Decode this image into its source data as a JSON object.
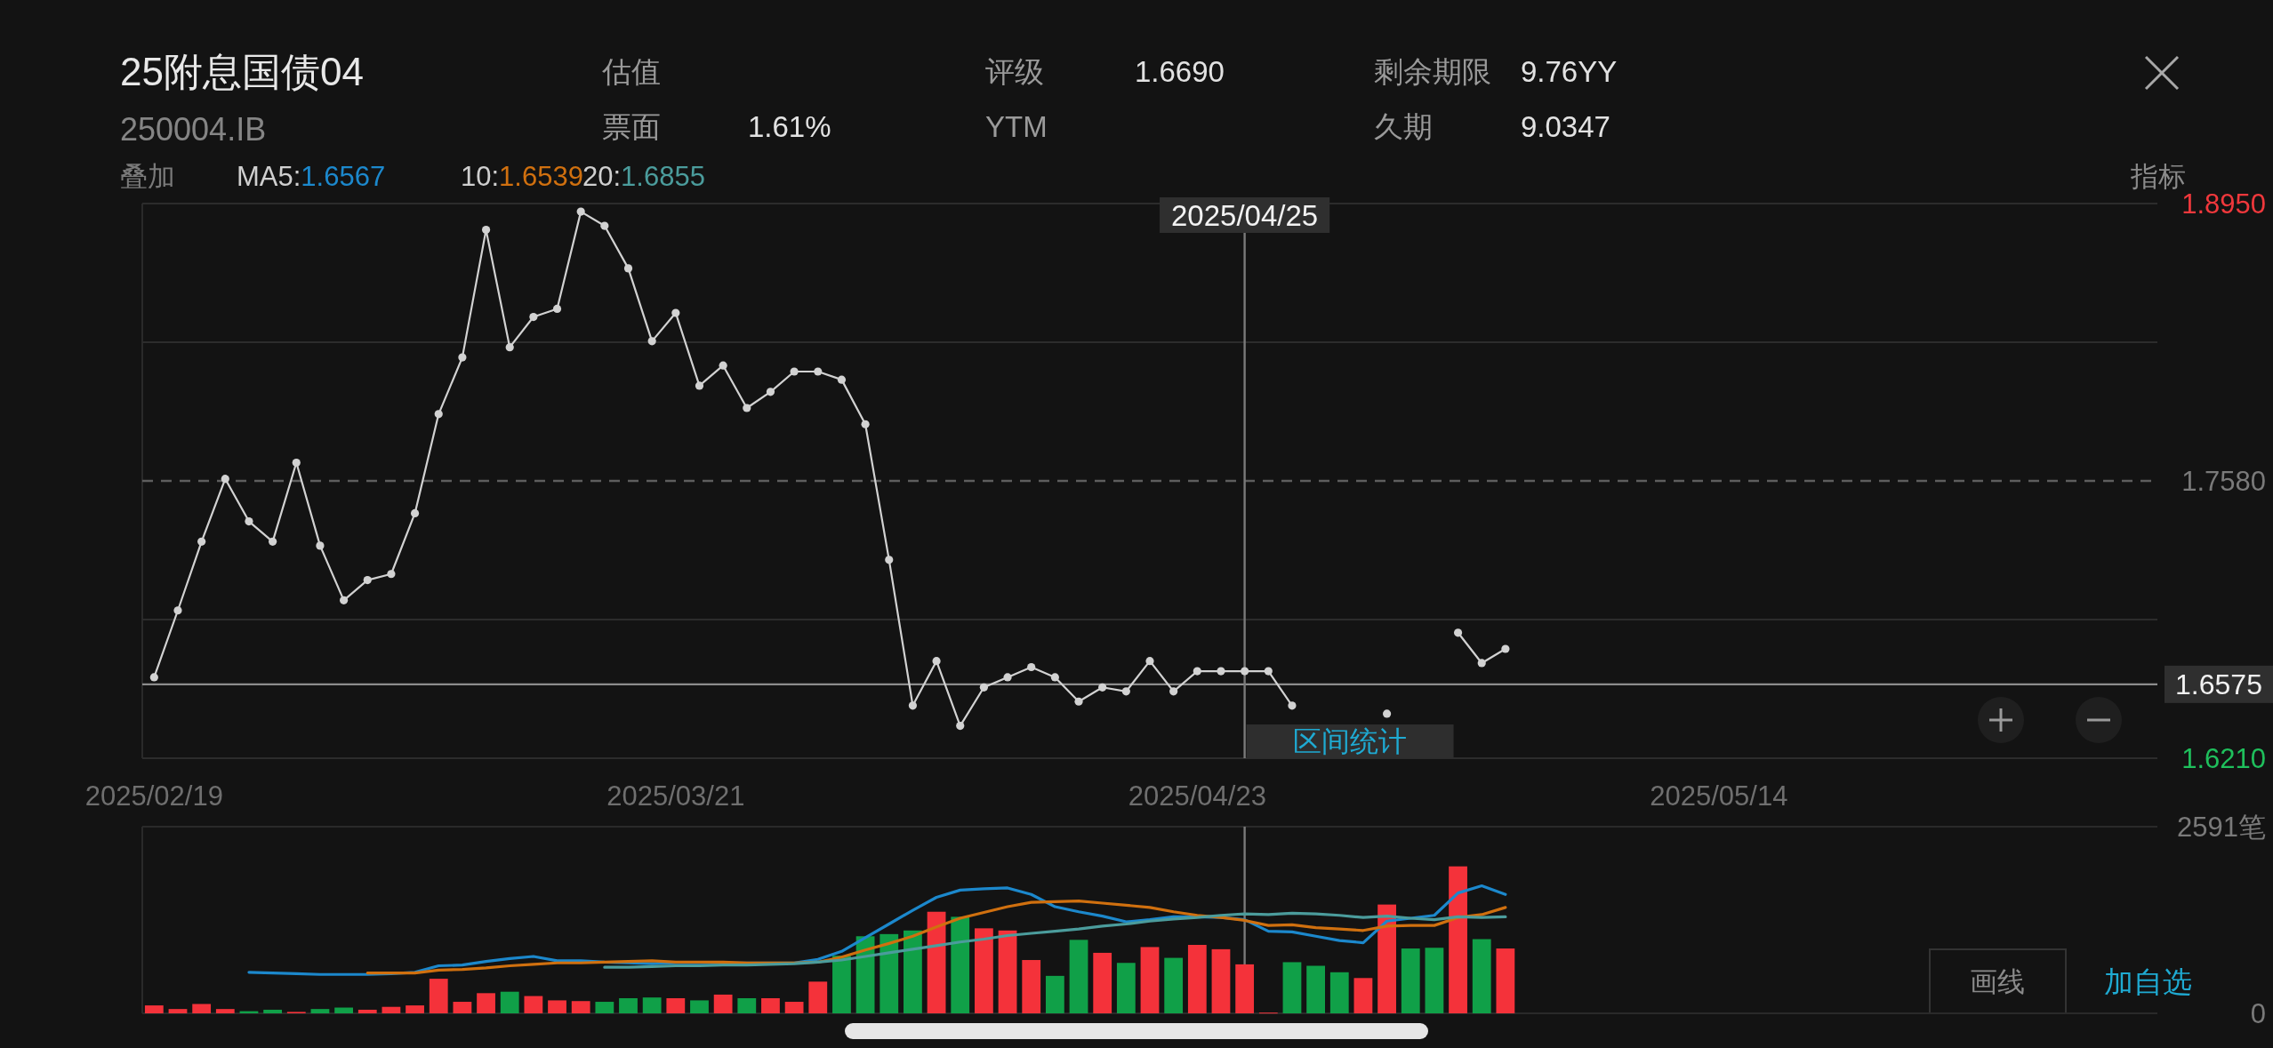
{
  "chart_data": [
    {
      "type": "other",
      "title": "25附息国债04",
      "subtitle": "250004.IB",
      "annotations": [
        "估值",
        "票面",
        "1.61%",
        "评级",
        "1.6690",
        "YTM",
        "剩余期限",
        "9.76YY",
        "久期",
        "9.0347",
        "叠加",
        "MA5:",
        "1.6567",
        "10:",
        "1.6539",
        "20:",
        "1.6855",
        "指标",
        "画线",
        "加自选"
      ]
    },
    {
      "type": "line",
      "categories": [
        "2025/02/19",
        null,
        null,
        null,
        null,
        null,
        null,
        null,
        null,
        null,
        null,
        null,
        null,
        null,
        null,
        null,
        null,
        null,
        null,
        null,
        null,
        null,
        "2025/03/21",
        null,
        null,
        null,
        null,
        null,
        null,
        null,
        null,
        null,
        null,
        null,
        null,
        null,
        null,
        null,
        null,
        null,
        null,
        null,
        null,
        null,
        "2025/04/23",
        null,
        null,
        null,
        null,
        null,
        null,
        null,
        null,
        null,
        null,
        null,
        null,
        null,
        null,
        null,
        null,
        null,
        null,
        null,
        null,
        null,
        "2025/05/14",
        null,
        null,
        null,
        null,
        null,
        null,
        null,
        null,
        null,
        null,
        null,
        null,
        null,
        null,
        null,
        null,
        null,
        null
      ],
      "series": [
        {
          "color": "#d2d2d2",
          "values": [
            1.661,
            1.694,
            1.728,
            1.759,
            1.738,
            1.728,
            1.767,
            1.726,
            1.699,
            1.709,
            1.712,
            1.742,
            1.791,
            1.819,
            1.882,
            1.824,
            1.839,
            1.843,
            1.891,
            1.884,
            1.863,
            1.827,
            1.841,
            1.805,
            1.815,
            1.794,
            1.802,
            1.812,
            1.812,
            1.808,
            1.786,
            1.719,
            1.647,
            1.669,
            1.637,
            1.656,
            1.661,
            1.666,
            1.661,
            1.649,
            1.656,
            1.654,
            1.669,
            1.654,
            1.664,
            1.664,
            1.664,
            1.664,
            1.647,
            null,
            null,
            null,
            1.643,
            null,
            null,
            1.683,
            1.668,
            1.675,
            null,
            null,
            null,
            null,
            null,
            null,
            null,
            null,
            null,
            null,
            null,
            null,
            null,
            null,
            null,
            null,
            null,
            null,
            null,
            null,
            null,
            null,
            null,
            null,
            null,
            null,
            null
          ]
        }
      ],
      "marker": "circle",
      "ylim": [
        1.621,
        1.895
      ],
      "yticks": [
        {
          "value": 1.895,
          "label": "1.8950"
        },
        {
          "value": 1.8265,
          "label": null
        },
        {
          "value": 1.758,
          "label": "1.7580"
        },
        {
          "value": 1.6895,
          "label": null
        },
        {
          "value": 1.621,
          "label": "1.6210"
        }
      ],
      "grid": "y",
      "ref_lines": [
        {
          "axis": "y",
          "value": 1.758,
          "line_style": "dashed",
          "color": "#5e5e5e"
        },
        {
          "axis": "y",
          "value": 1.6575,
          "label": "1.6575",
          "color": "#8c8c8c"
        }
      ],
      "annotations": [
        "2025/04/25",
        "区间统计"
      ]
    },
    {
      "type": "bar",
      "categories": [
        "2025/02/19",
        null,
        null,
        null,
        null,
        null,
        null,
        null,
        null,
        null,
        null,
        null,
        null,
        null,
        null,
        null,
        null,
        null,
        null,
        null,
        null,
        null,
        "2025/03/21",
        null,
        null,
        null,
        null,
        null,
        null,
        null,
        null,
        null,
        null,
        null,
        null,
        null,
        null,
        null,
        null,
        null,
        null,
        null,
        null,
        null,
        "2025/04/23",
        null,
        null,
        null,
        null,
        null,
        null,
        null,
        null,
        null,
        null,
        null,
        null,
        null,
        null,
        null,
        null,
        null,
        null,
        null,
        null,
        null,
        "2025/05/14",
        null,
        null,
        null,
        null,
        null,
        null,
        null,
        null,
        null,
        null,
        null,
        null,
        null,
        null,
        null,
        null,
        null,
        null
      ],
      "series": [
        {
          "type": "bar",
          "colors": [
            "#f4323a",
            "#f4323a",
            "#f4323a",
            "#f4323a",
            "#10a048",
            "#10a048",
            "#f4323a",
            "#10a048",
            "#10a048",
            "#f4323a",
            "#f4323a",
            "#f4323a",
            "#f4323a",
            "#f4323a",
            "#f4323a",
            "#10a048",
            "#f4323a",
            "#f4323a",
            "#f4323a",
            "#10a048",
            "#10a048",
            "#10a048",
            "#f4323a",
            "#10a048",
            "#f4323a",
            "#10a048",
            "#f4323a",
            "#f4323a",
            "#f4323a",
            "#10a048",
            "#10a048",
            "#10a048",
            "#10a048",
            "#f4323a",
            "#10a048",
            "#f4323a",
            "#f4323a",
            "#f4323a",
            "#10a048",
            "#10a048",
            "#f4323a",
            "#10a048",
            "#f4323a",
            "#10a048",
            "#f4323a",
            "#f4323a",
            "#f4323a",
            "#f4323a",
            "#10a048",
            "#10a048",
            "#10a048",
            "#f4323a",
            "#f4323a",
            "#10a048",
            "#10a048",
            "#f4323a",
            "#10a048",
            "#f4323a",
            null,
            null,
            null,
            null,
            null,
            null,
            null,
            null,
            null,
            null,
            null,
            null,
            null,
            null,
            null,
            null,
            null,
            null,
            null,
            null,
            null,
            null,
            null,
            null,
            null,
            null,
            null
          ],
          "values": [
            110,
            60,
            130,
            60,
            30,
            50,
            20,
            60,
            80,
            50,
            90,
            110,
            480,
            160,
            280,
            300,
            240,
            180,
            170,
            160,
            210,
            220,
            210,
            180,
            260,
            210,
            210,
            160,
            440,
            800,
            1070,
            1100,
            1150,
            1410,
            1340,
            1180,
            1150,
            740,
            520,
            1020,
            840,
            700,
            920,
            770,
            950,
            890,
            680,
            10,
            710,
            660,
            570,
            490,
            1510,
            900,
            910,
            2040,
            1030,
            900,
            null,
            null,
            null,
            null,
            null,
            null,
            null,
            null,
            null,
            null,
            null,
            null,
            null,
            null,
            null,
            null,
            null,
            null,
            null,
            null,
            null,
            null,
            null,
            null,
            null,
            null,
            null
          ]
        },
        {
          "type": "line",
          "color": "#1c88cc",
          "values": [
            null,
            null,
            null,
            null,
            570,
            560,
            550,
            540,
            540,
            540,
            550,
            570,
            660,
            670,
            720,
            760,
            790,
            730,
            730,
            710,
            700,
            690,
            700,
            700,
            700,
            700,
            700,
            700,
            750,
            860,
            1050,
            1240,
            1430,
            1610,
            1710,
            1730,
            1740,
            1650,
            1480,
            1410,
            1350,
            1270,
            1300,
            1340,
            1340,
            1330,
            1300,
            1140,
            1130,
            1070,
            1010,
            980,
            1280,
            1320,
            1360,
            1670,
            1770,
            1650,
            null,
            null,
            null,
            null,
            null,
            null,
            null,
            null,
            null,
            null,
            null,
            null,
            null,
            null,
            null,
            null,
            null,
            null,
            null,
            null,
            null,
            null,
            null,
            null,
            null,
            null,
            null
          ]
        },
        {
          "type": "line",
          "color": "#d0700f",
          "values": [
            null,
            null,
            null,
            null,
            null,
            null,
            null,
            null,
            null,
            560,
            560,
            560,
            600,
            610,
            630,
            660,
            680,
            700,
            700,
            710,
            720,
            730,
            710,
            710,
            710,
            700,
            700,
            700,
            710,
            780,
            880,
            970,
            1070,
            1200,
            1320,
            1400,
            1480,
            1540,
            1550,
            1560,
            1530,
            1500,
            1470,
            1410,
            1360,
            1330,
            1290,
            1220,
            1230,
            1190,
            1170,
            1150,
            1210,
            1220,
            1220,
            1330,
            1370,
            1470,
            null,
            null,
            null,
            null,
            null,
            null,
            null,
            null,
            null,
            null,
            null,
            null,
            null,
            null,
            null,
            null,
            null,
            null,
            null,
            null,
            null,
            null,
            null,
            null,
            null,
            null,
            null
          ]
        },
        {
          "type": "line",
          "color": "#4b9c9c",
          "values": [
            null,
            null,
            null,
            null,
            null,
            null,
            null,
            null,
            null,
            null,
            null,
            null,
            null,
            null,
            null,
            null,
            null,
            null,
            null,
            640,
            640,
            650,
            660,
            660,
            670,
            670,
            680,
            690,
            710,
            740,
            790,
            840,
            890,
            940,
            990,
            1030,
            1080,
            1110,
            1140,
            1170,
            1210,
            1240,
            1280,
            1310,
            1330,
            1360,
            1380,
            1370,
            1390,
            1380,
            1360,
            1330,
            1350,
            1320,
            1300,
            1340,
            1330,
            1340,
            null,
            null,
            null,
            null,
            null,
            null,
            null,
            null,
            null,
            null,
            null,
            null,
            null,
            null,
            null,
            null,
            null,
            null,
            null,
            null,
            null,
            null,
            null,
            null,
            null,
            null,
            null
          ]
        }
      ],
      "ylim": [
        0,
        2591
      ],
      "yticks": [
        {
          "value": 2591,
          "label": "2591笔"
        },
        0
      ],
      "tick_labels": "y"
    }
  ]
}
